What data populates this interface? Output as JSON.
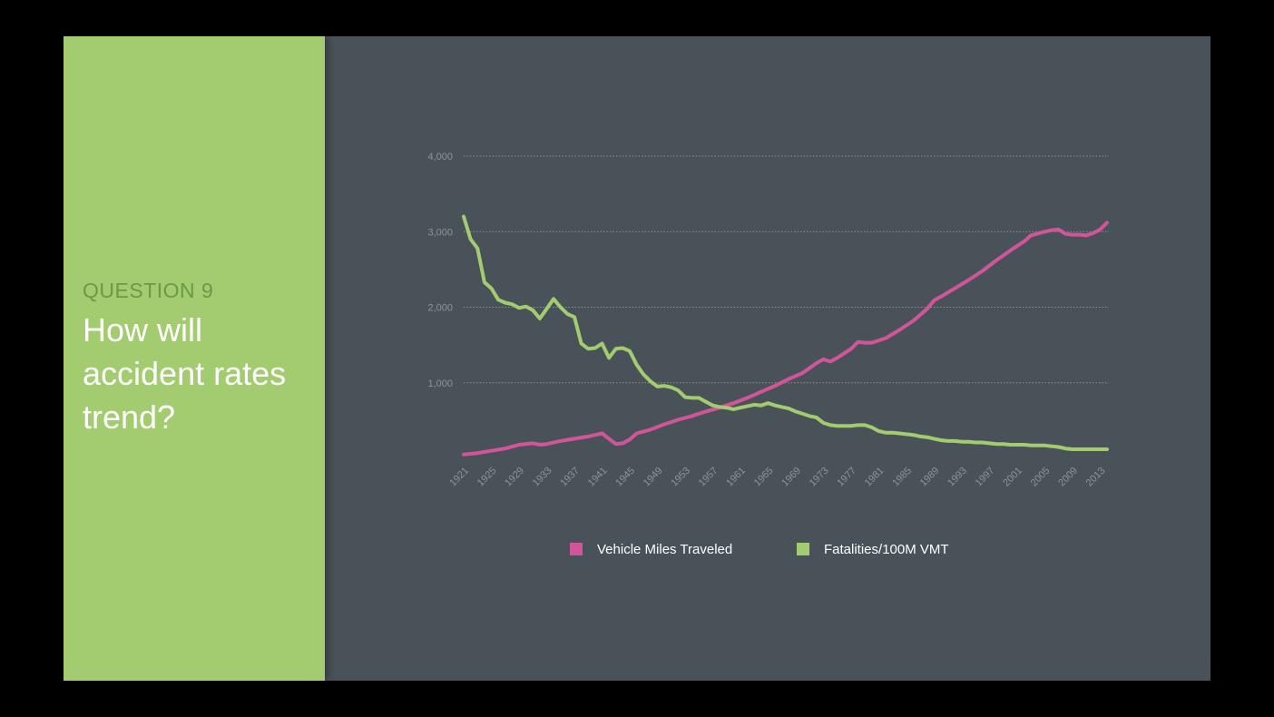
{
  "slide": {
    "question_label": "QUESTION 9",
    "question_title": "How will accident rates trend?"
  },
  "colors": {
    "background": "#000000",
    "slide_bg": "#4a5259",
    "panel_green": "#a3cb6f",
    "label_green": "#6b9a45",
    "vmt_pink": "#d2559a",
    "fatalities_green": "#a3cb6f",
    "grid": "#8a9298",
    "axis_text": "#8c949b"
  },
  "chart_data": {
    "type": "line",
    "title": "",
    "xlabel": "",
    "ylabel": "",
    "xlim": [
      1921,
      2014
    ],
    "ylim": [
      0,
      4000
    ],
    "y_ticks": [
      "1,000",
      "2,000",
      "3,000",
      "4,000"
    ],
    "y_tick_values": [
      1000,
      2000,
      3000,
      4000
    ],
    "x_tick_labels": [
      "1921",
      "1925",
      "1929",
      "1933",
      "1937",
      "1941",
      "1945",
      "1949",
      "1953",
      "1957",
      "1961",
      "1965",
      "1969",
      "1973",
      "1977",
      "1981",
      "1985",
      "1989",
      "1993",
      "1997",
      "2001",
      "2005",
      "2009",
      "2013"
    ],
    "grid": true,
    "legend_position": "bottom",
    "series": [
      {
        "name": "Vehicle Miles Traveled",
        "color": "#d2559a",
        "points": [
          [
            1921,
            50
          ],
          [
            1923,
            70
          ],
          [
            1925,
            100
          ],
          [
            1927,
            130
          ],
          [
            1929,
            180
          ],
          [
            1931,
            200
          ],
          [
            1932,
            180
          ],
          [
            1933,
            190
          ],
          [
            1935,
            230
          ],
          [
            1937,
            260
          ],
          [
            1939,
            290
          ],
          [
            1941,
            330
          ],
          [
            1942,
            260
          ],
          [
            1943,
            190
          ],
          [
            1944,
            200
          ],
          [
            1945,
            250
          ],
          [
            1946,
            330
          ],
          [
            1948,
            380
          ],
          [
            1950,
            450
          ],
          [
            1952,
            510
          ],
          [
            1954,
            560
          ],
          [
            1956,
            620
          ],
          [
            1958,
            670
          ],
          [
            1960,
            730
          ],
          [
            1962,
            800
          ],
          [
            1964,
            880
          ],
          [
            1966,
            960
          ],
          [
            1968,
            1050
          ],
          [
            1970,
            1130
          ],
          [
            1972,
            1260
          ],
          [
            1973,
            1310
          ],
          [
            1974,
            1280
          ],
          [
            1975,
            1330
          ],
          [
            1977,
            1450
          ],
          [
            1978,
            1540
          ],
          [
            1979,
            1530
          ],
          [
            1980,
            1530
          ],
          [
            1982,
            1590
          ],
          [
            1984,
            1700
          ],
          [
            1986,
            1820
          ],
          [
            1988,
            1980
          ],
          [
            1989,
            2090
          ],
          [
            1990,
            2140
          ],
          [
            1992,
            2250
          ],
          [
            1994,
            2360
          ],
          [
            1996,
            2480
          ],
          [
            1998,
            2620
          ],
          [
            2000,
            2750
          ],
          [
            2002,
            2870
          ],
          [
            2003,
            2950
          ],
          [
            2005,
            3000
          ],
          [
            2006,
            3020
          ],
          [
            2007,
            3030
          ],
          [
            2008,
            2970
          ],
          [
            2009,
            2960
          ],
          [
            2010,
            2960
          ],
          [
            2011,
            2950
          ],
          [
            2012,
            2980
          ],
          [
            2013,
            3030
          ],
          [
            2014,
            3120
          ]
        ]
      },
      {
        "name": "Fatalities/100M VMT",
        "color": "#a3cb6f",
        "points": [
          [
            1921,
            3200
          ],
          [
            1922,
            2900
          ],
          [
            1923,
            2780
          ],
          [
            1924,
            2330
          ],
          [
            1925,
            2250
          ],
          [
            1926,
            2100
          ],
          [
            1927,
            2060
          ],
          [
            1928,
            2040
          ],
          [
            1929,
            1990
          ],
          [
            1930,
            2010
          ],
          [
            1931,
            1960
          ],
          [
            1932,
            1850
          ],
          [
            1933,
            1980
          ],
          [
            1934,
            2110
          ],
          [
            1935,
            2000
          ],
          [
            1936,
            1910
          ],
          [
            1937,
            1870
          ],
          [
            1938,
            1520
          ],
          [
            1939,
            1450
          ],
          [
            1940,
            1460
          ],
          [
            1941,
            1520
          ],
          [
            1942,
            1330
          ],
          [
            1943,
            1450
          ],
          [
            1944,
            1460
          ],
          [
            1945,
            1420
          ],
          [
            1946,
            1240
          ],
          [
            1947,
            1110
          ],
          [
            1948,
            1020
          ],
          [
            1949,
            950
          ],
          [
            1950,
            960
          ],
          [
            1951,
            940
          ],
          [
            1952,
            900
          ],
          [
            1953,
            810
          ],
          [
            1954,
            800
          ],
          [
            1955,
            800
          ],
          [
            1956,
            750
          ],
          [
            1957,
            700
          ],
          [
            1958,
            680
          ],
          [
            1959,
            670
          ],
          [
            1960,
            650
          ],
          [
            1961,
            670
          ],
          [
            1962,
            690
          ],
          [
            1963,
            710
          ],
          [
            1964,
            700
          ],
          [
            1965,
            730
          ],
          [
            1966,
            700
          ],
          [
            1967,
            680
          ],
          [
            1968,
            660
          ],
          [
            1969,
            620
          ],
          [
            1970,
            590
          ],
          [
            1971,
            560
          ],
          [
            1972,
            540
          ],
          [
            1973,
            470
          ],
          [
            1974,
            440
          ],
          [
            1975,
            430
          ],
          [
            1976,
            430
          ],
          [
            1977,
            430
          ],
          [
            1978,
            440
          ],
          [
            1979,
            440
          ],
          [
            1980,
            410
          ],
          [
            1981,
            360
          ],
          [
            1982,
            340
          ],
          [
            1983,
            340
          ],
          [
            1984,
            330
          ],
          [
            1985,
            320
          ],
          [
            1986,
            310
          ],
          [
            1987,
            290
          ],
          [
            1988,
            280
          ],
          [
            1989,
            260
          ],
          [
            1990,
            240
          ],
          [
            1991,
            230
          ],
          [
            1992,
            230
          ],
          [
            1993,
            220
          ],
          [
            1994,
            220
          ],
          [
            1995,
            210
          ],
          [
            1996,
            210
          ],
          [
            1997,
            200
          ],
          [
            1998,
            190
          ],
          [
            1999,
            190
          ],
          [
            2000,
            180
          ],
          [
            2001,
            180
          ],
          [
            2002,
            180
          ],
          [
            2003,
            170
          ],
          [
            2004,
            170
          ],
          [
            2005,
            170
          ],
          [
            2006,
            160
          ],
          [
            2007,
            150
          ],
          [
            2008,
            130
          ],
          [
            2009,
            120
          ],
          [
            2010,
            120
          ],
          [
            2011,
            120
          ],
          [
            2012,
            120
          ],
          [
            2013,
            120
          ],
          [
            2014,
            120
          ]
        ]
      }
    ]
  },
  "legend": {
    "items": [
      {
        "label": "Vehicle Miles Traveled",
        "color": "#d2559a"
      },
      {
        "label": "Fatalities/100M VMT",
        "color": "#a3cb6f"
      }
    ]
  }
}
